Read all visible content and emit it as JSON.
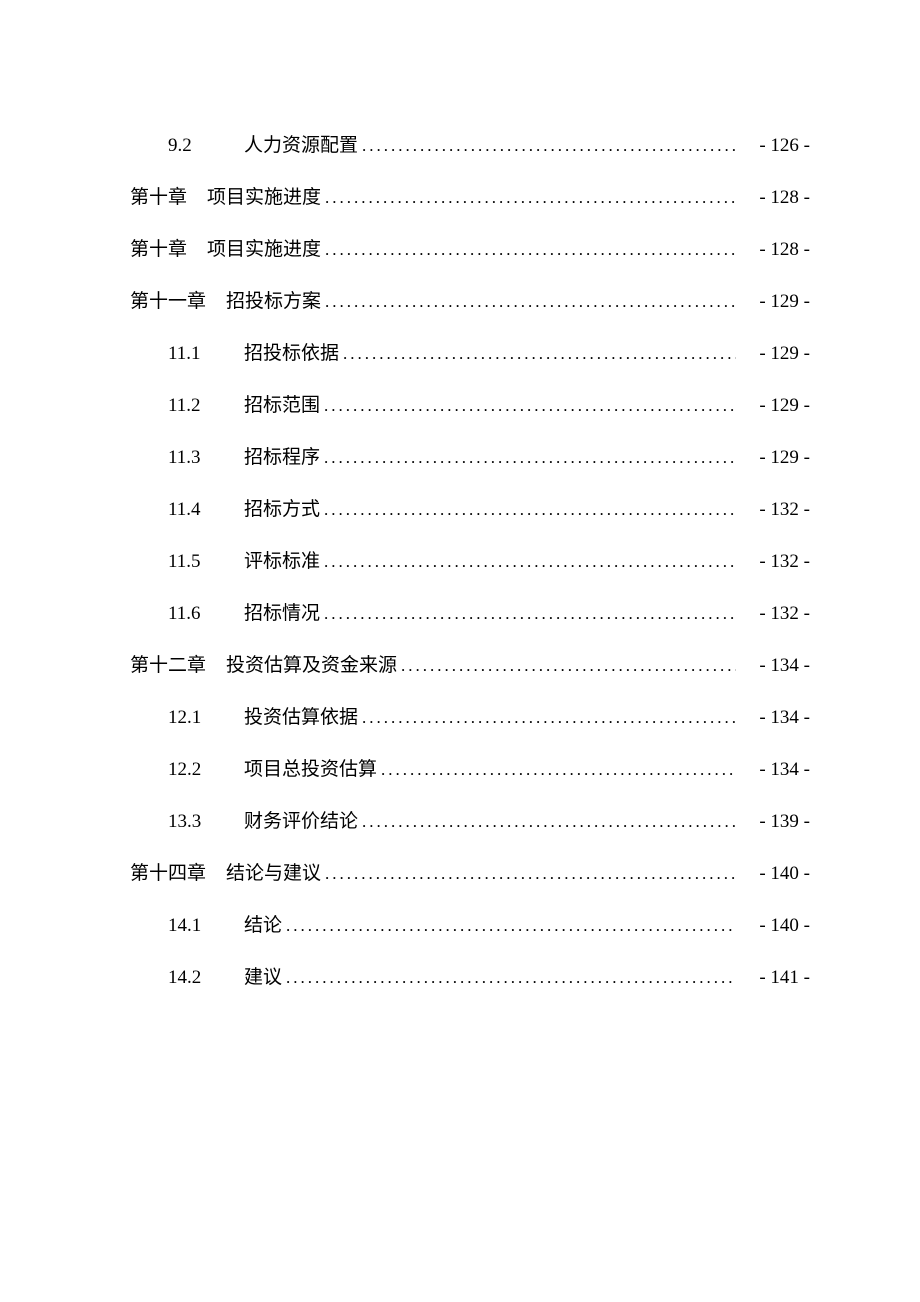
{
  "toc": {
    "font_size": 19,
    "line_height": 52,
    "text_color": "#000000",
    "background_color": "#ffffff",
    "dot_char": ".",
    "entries": [
      {
        "level": 2,
        "number": "9.2",
        "title": "人力资源配置",
        "page": "- 126 -"
      },
      {
        "level": 1,
        "number": "第十章",
        "title": "项目实施进度",
        "page": "- 128 -"
      },
      {
        "level": 1,
        "number": "第十章",
        "title": "项目实施进度",
        "page": "- 128 -"
      },
      {
        "level": 1,
        "number": "第十一章",
        "title": "招投标方案",
        "page": "- 129 -"
      },
      {
        "level": 2,
        "number": "11.1",
        "title": "招投标依据",
        "page": "- 129 -"
      },
      {
        "level": 2,
        "number": "11.2",
        "title": "招标范围",
        "page": "- 129 -"
      },
      {
        "level": 2,
        "number": "11.3",
        "title": "招标程序",
        "page": "- 129 -"
      },
      {
        "level": 2,
        "number": "11.4",
        "title": "招标方式",
        "page": "- 132 -"
      },
      {
        "level": 2,
        "number": "11.5",
        "title": "评标标准",
        "page": "- 132 -"
      },
      {
        "level": 2,
        "number": "11.6",
        "title": "招标情况",
        "page": "- 132 -"
      },
      {
        "level": 1,
        "number": "第十二章",
        "title": "投资估算及资金来源",
        "page": "- 134 -"
      },
      {
        "level": 2,
        "number": "12.1",
        "title": "投资估算依据",
        "page": "- 134 -"
      },
      {
        "level": 2,
        "number": "12.2",
        "title": "项目总投资估算",
        "page": "- 134 -"
      },
      {
        "level": 2,
        "number": "13.3",
        "title": "财务评价结论",
        "page": "- 139 -"
      },
      {
        "level": 1,
        "number": "第十四章",
        "title": "结论与建议",
        "page": "- 140 -"
      },
      {
        "level": 2,
        "number": "14.1",
        "title": "结论",
        "page": "- 140 -"
      },
      {
        "level": 2,
        "number": "14.2",
        "title": "建议",
        "page": "- 141 -"
      }
    ]
  }
}
